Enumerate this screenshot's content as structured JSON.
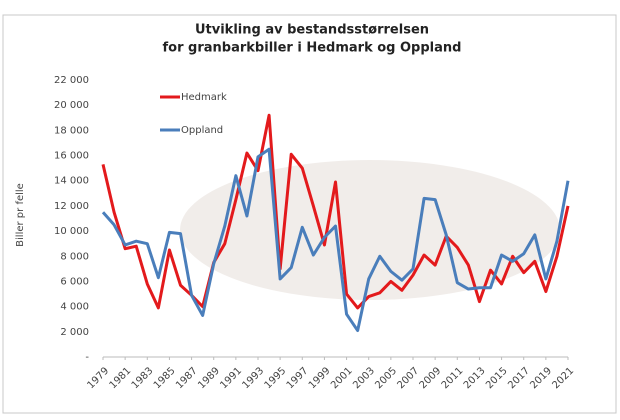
{
  "chart_data": {
    "type": "line",
    "title": "Utvikling av bestandsstørrelsen",
    "subtitle": "for granbarkbiller i Hedmark og Oppland",
    "y_label": "Biller pr felle",
    "x": [
      1979,
      1980,
      1981,
      1982,
      1983,
      1984,
      1985,
      1986,
      1987,
      1988,
      1989,
      1990,
      1991,
      1992,
      1993,
      1994,
      1995,
      1996,
      1997,
      1998,
      1999,
      2000,
      2001,
      2002,
      2003,
      2004,
      2005,
      2006,
      2007,
      2008,
      2009,
      2010,
      2011,
      2012,
      2013,
      2014,
      2015,
      2016,
      2017,
      2018,
      2019,
      2020,
      2021
    ],
    "xlim": [
      1979,
      2021
    ],
    "xticks": [
      1979,
      1981,
      1983,
      1985,
      1987,
      1989,
      1991,
      1993,
      1995,
      1997,
      1999,
      2001,
      2003,
      2005,
      2007,
      2009,
      2011,
      2013,
      2015,
      2017,
      2019,
      2021
    ],
    "ylim": [
      0,
      22000
    ],
    "yticks": [
      {
        "value": 0,
        "label": "-"
      },
      {
        "value": 2000,
        "label": "2 000"
      },
      {
        "value": 4000,
        "label": "4 000"
      },
      {
        "value": 6000,
        "label": "6 000"
      },
      {
        "value": 8000,
        "label": "8 000"
      },
      {
        "value": 10000,
        "label": "10 000"
      },
      {
        "value": 12000,
        "label": "12 000"
      },
      {
        "value": 14000,
        "label": "14 000"
      },
      {
        "value": 16000,
        "label": "16 000"
      },
      {
        "value": 18000,
        "label": "18 000"
      },
      {
        "value": 20000,
        "label": "20 000"
      },
      {
        "value": 22000,
        "label": "22 000"
      }
    ],
    "series": [
      {
        "name": "Hedmark",
        "color": "#e31a1c",
        "values": [
          15300,
          11500,
          8600,
          8800,
          5800,
          3900,
          8500,
          5700,
          4900,
          4000,
          7500,
          9000,
          12500,
          16200,
          14800,
          19200,
          7000,
          16100,
          15000,
          12000,
          8900,
          13900,
          5000,
          3900,
          4800,
          5100,
          6000,
          5300,
          6500,
          8100,
          7300,
          9600,
          8700,
          7300,
          4400,
          6900,
          5800,
          8000,
          6700,
          7600,
          5200,
          8000,
          12000
        ]
      },
      {
        "name": "Oppland",
        "color": "#4a7ebb",
        "values": [
          11500,
          10500,
          8900,
          9200,
          9000,
          6300,
          9900,
          9800,
          4900,
          3300,
          7400,
          10400,
          14400,
          11200,
          15900,
          16500,
          6200,
          7100,
          10300,
          8100,
          9500,
          10400,
          3400,
          2100,
          6200,
          8000,
          6800,
          6100,
          7000,
          12600,
          12500,
          9700,
          5900,
          5400,
          5500,
          5500,
          8100,
          7600,
          8200,
          9700,
          6200,
          9200,
          14000
        ]
      }
    ]
  }
}
